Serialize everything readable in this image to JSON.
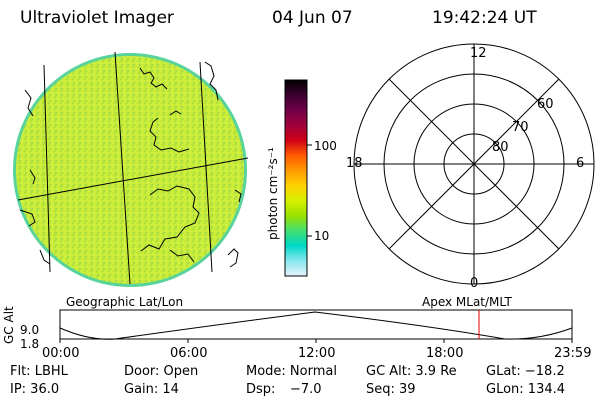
{
  "header": {
    "instrument": "Ultraviolet Imager",
    "date": "04 Jun 07",
    "time": "19:42:24 UT"
  },
  "colorbar": {
    "unit_label": "photon cm⁻²s⁻¹",
    "ticks": [
      "100",
      "10"
    ],
    "colors": [
      "#000000",
      "#3a0030",
      "#70004a",
      "#a0003a",
      "#d00018",
      "#ff5a00",
      "#ff9a00",
      "#ffd200",
      "#d8f000",
      "#9be000",
      "#40e070",
      "#00d8c8",
      "#88e8f0",
      "#e8f4f8"
    ]
  },
  "polar": {
    "hour_labels": {
      "top": "12",
      "left": "18",
      "right": "6",
      "bottom": "0"
    },
    "lat_labels": [
      "60",
      "70",
      "80"
    ]
  },
  "timeline": {
    "left_title": "Geographic Lat/Lon",
    "right_title": "Apex MLat/MLT",
    "axis_label": "GC Alt",
    "y_ticks": [
      "9.0",
      "1.8"
    ],
    "x_ticks": [
      "00:00",
      "06:00",
      "12:00",
      "18:00",
      "23:59"
    ],
    "marker_time": "19:42",
    "marker_color": "#e00000"
  },
  "status": {
    "flt": "Flt: LBHL",
    "door": "Door: Open",
    "mode": "Mode: Normal",
    "gc_alt": "GC Alt: 3.9 Re",
    "glat": "GLat: −18.2",
    "ip": "IP: 36.0",
    "gain": "Gain: 14",
    "dsp_label": "Dsp:",
    "dsp_value": "−7.0",
    "seq": "Seq: 39",
    "glon": "GLon: 134.4"
  }
}
